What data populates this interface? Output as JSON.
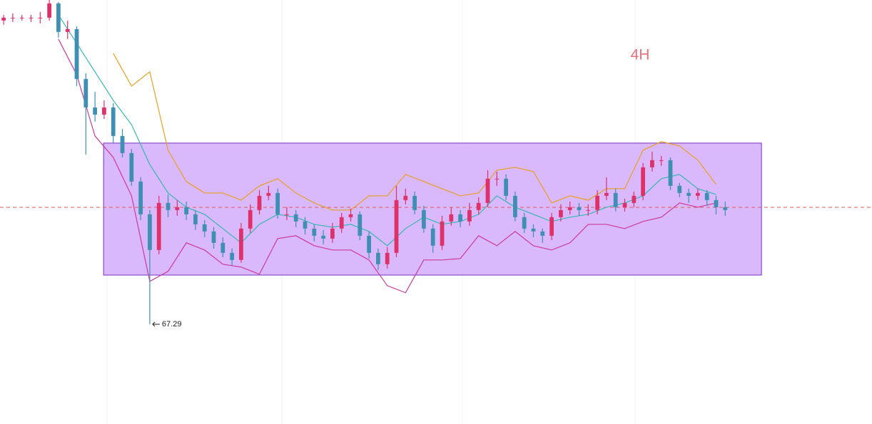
{
  "chart_data": {
    "type": "candlestick",
    "timeframe": "4H",
    "up_color": "#e0306a",
    "down_color": "#3f8fb5",
    "xlim": [
      -0.4,
      95.07
    ],
    "ylim": [
      60.29,
      90.04
    ],
    "candles": [
      [
        88.6,
        89.0,
        88.3,
        88.8
      ],
      [
        88.8,
        89.1,
        88.5,
        88.8
      ],
      [
        88.8,
        89.0,
        88.6,
        88.8
      ],
      [
        88.8,
        89.0,
        88.5,
        88.8
      ],
      [
        88.8,
        89.2,
        88.4,
        88.8
      ],
      [
        88.8,
        90.1,
        88.6,
        89.8
      ],
      [
        89.8,
        89.9,
        87.4,
        87.8
      ],
      [
        87.8,
        88.6,
        87.3,
        88.0
      ],
      [
        88.0,
        88.2,
        84.0,
        84.5
      ],
      [
        84.5,
        84.9,
        79.2,
        82.5
      ],
      [
        82.5,
        83.6,
        81.5,
        82.0
      ],
      [
        82.0,
        83.0,
        81.7,
        82.5
      ],
      [
        82.5,
        82.8,
        80.0,
        80.5
      ],
      [
        80.5,
        81.0,
        79.0,
        79.3
      ],
      [
        79.3,
        79.6,
        77.0,
        77.3
      ],
      [
        77.3,
        77.6,
        74.6,
        75.0
      ],
      [
        75.0,
        75.3,
        67.29,
        72.5
      ],
      [
        72.5,
        76.3,
        72.2,
        75.8
      ],
      [
        75.8,
        76.4,
        74.8,
        75.3
      ],
      [
        75.3,
        76.0,
        74.9,
        75.5
      ],
      [
        75.5,
        75.9,
        74.6,
        75.0
      ],
      [
        75.0,
        75.3,
        73.9,
        74.3
      ],
      [
        74.3,
        74.6,
        73.4,
        73.8
      ],
      [
        73.8,
        74.1,
        72.6,
        73.0
      ],
      [
        73.0,
        73.4,
        72.0,
        72.3
      ],
      [
        72.3,
        72.6,
        71.4,
        71.8
      ],
      [
        71.8,
        74.4,
        71.6,
        74.0
      ],
      [
        74.0,
        75.7,
        73.7,
        75.3
      ],
      [
        75.3,
        76.7,
        75.0,
        76.3
      ],
      [
        76.3,
        77.0,
        76.0,
        76.5
      ],
      [
        76.5,
        76.8,
        74.7,
        75.0
      ],
      [
        75.0,
        75.5,
        74.6,
        75.0
      ],
      [
        75.0,
        75.3,
        74.1,
        74.5
      ],
      [
        74.5,
        74.8,
        73.6,
        74.0
      ],
      [
        74.0,
        74.3,
        73.1,
        73.5
      ],
      [
        73.5,
        73.9,
        72.9,
        73.3
      ],
      [
        73.3,
        74.4,
        73.0,
        74.0
      ],
      [
        74.0,
        75.1,
        73.7,
        74.8
      ],
      [
        74.8,
        75.4,
        74.5,
        75.0
      ],
      [
        75.0,
        75.2,
        73.2,
        73.5
      ],
      [
        73.5,
        73.8,
        71.9,
        72.3
      ],
      [
        72.3,
        72.6,
        71.1,
        71.5
      ],
      [
        71.5,
        72.7,
        71.2,
        72.3
      ],
      [
        72.3,
        77.0,
        72.0,
        76.0
      ],
      [
        76.0,
        76.8,
        75.7,
        76.3
      ],
      [
        76.3,
        76.6,
        75.0,
        75.3
      ],
      [
        75.3,
        75.6,
        73.7,
        74.0
      ],
      [
        74.0,
        74.3,
        72.3,
        72.8
      ],
      [
        72.8,
        74.9,
        72.5,
        74.5
      ],
      [
        74.5,
        75.5,
        74.2,
        75.0
      ],
      [
        75.0,
        75.3,
        74.1,
        74.5
      ],
      [
        74.5,
        75.8,
        74.2,
        75.3
      ],
      [
        75.3,
        76.2,
        75.0,
        75.8
      ],
      [
        75.8,
        78.1,
        75.5,
        77.5
      ],
      [
        77.5,
        78.0,
        77.0,
        77.5
      ],
      [
        77.5,
        77.8,
        76.0,
        76.3
      ],
      [
        76.3,
        76.6,
        74.5,
        74.8
      ],
      [
        74.8,
        75.1,
        73.7,
        74.0
      ],
      [
        74.0,
        74.3,
        73.4,
        73.8
      ],
      [
        73.8,
        74.0,
        73.0,
        73.5
      ],
      [
        73.5,
        75.1,
        73.2,
        74.8
      ],
      [
        74.8,
        75.7,
        74.5,
        75.3
      ],
      [
        75.3,
        75.9,
        75.0,
        75.5
      ],
      [
        75.5,
        75.8,
        74.9,
        75.3
      ],
      [
        75.3,
        75.7,
        74.9,
        75.3
      ],
      [
        75.3,
        76.7,
        75.0,
        76.3
      ],
      [
        76.3,
        77.6,
        76.0,
        76.5
      ],
      [
        76.5,
        76.8,
        75.2,
        75.5
      ],
      [
        75.5,
        76.1,
        75.2,
        75.8
      ],
      [
        75.8,
        76.6,
        75.5,
        76.3
      ],
      [
        76.3,
        78.6,
        76.0,
        78.3
      ],
      [
        78.3,
        79.4,
        78.0,
        78.8
      ],
      [
        78.8,
        79.1,
        78.4,
        78.8
      ],
      [
        78.8,
        79.0,
        76.7,
        77.0
      ],
      [
        77.0,
        77.2,
        76.2,
        76.5
      ],
      [
        76.5,
        76.8,
        75.8,
        76.3
      ],
      [
        76.3,
        76.8,
        76.0,
        76.5
      ],
      [
        76.5,
        76.7,
        75.6,
        76.0
      ],
      [
        76.0,
        76.3,
        75.0,
        75.5
      ],
      [
        75.5,
        75.9,
        74.9,
        75.3
      ]
    ],
    "x": [
      0,
      2,
      4,
      6,
      8,
      10,
      12,
      14,
      16,
      18,
      20,
      22,
      24,
      26,
      28,
      30,
      32,
      34,
      36,
      38,
      40,
      42,
      44,
      46,
      48,
      50,
      52,
      54,
      56,
      58,
      60,
      62,
      64,
      66,
      68,
      70,
      72,
      74,
      76,
      78
    ],
    "series": [
      {
        "color": "#e8a020",
        "values": [
          null,
          null,
          null,
          null,
          null,
          null,
          86.3,
          84.0,
          85.0,
          79.5,
          77.3,
          76.5,
          76.5,
          76.0,
          77.0,
          77.5,
          76.5,
          75.8,
          75.3,
          75.3,
          76.3,
          76.3,
          77.8,
          77.3,
          76.8,
          76.3,
          76.5,
          78.1,
          78.3,
          78.0,
          75.8,
          76.3,
          76.0,
          76.8,
          76.8,
          79.5,
          80.1,
          79.8,
          78.8,
          77.1
        ]
      },
      {
        "color": "#35b8b0",
        "values": [
          null,
          null,
          null,
          89.0,
          87.0,
          85.0,
          83.0,
          81.3,
          78.5,
          76.5,
          75.5,
          75.0,
          74.0,
          73.0,
          74.3,
          75.0,
          74.8,
          74.3,
          74.1,
          74.3,
          73.8,
          72.8,
          74.0,
          74.8,
          74.3,
          74.5,
          75.0,
          76.3,
          75.5,
          75.0,
          74.5,
          74.8,
          75.0,
          75.5,
          75.8,
          76.3,
          77.5,
          77.8,
          76.8,
          76.4
        ]
      },
      {
        "color": "#cc3a9a",
        "values": [
          null,
          null,
          null,
          87.3,
          84.8,
          80.5,
          79.0,
          76.3,
          70.3,
          71.0,
          73.0,
          72.5,
          71.5,
          71.3,
          70.8,
          73.3,
          73.5,
          72.8,
          72.5,
          72.5,
          71.8,
          70.0,
          69.5,
          71.8,
          71.8,
          71.9,
          73.5,
          72.8,
          73.8,
          72.8,
          72.5,
          73.0,
          74.3,
          74.3,
          74.0,
          74.5,
          74.8,
          75.8,
          75.5,
          75.8
        ]
      }
    ],
    "zone": {
      "x": [
        10.94,
        82.97
      ],
      "y": [
        70.74,
        80.0
      ],
      "color": "#d9b8fb",
      "border": "#7a2fc0"
    },
    "hline": {
      "value": 75.49,
      "color": "#e05a5a"
    },
    "annotation": 67.29
  }
}
